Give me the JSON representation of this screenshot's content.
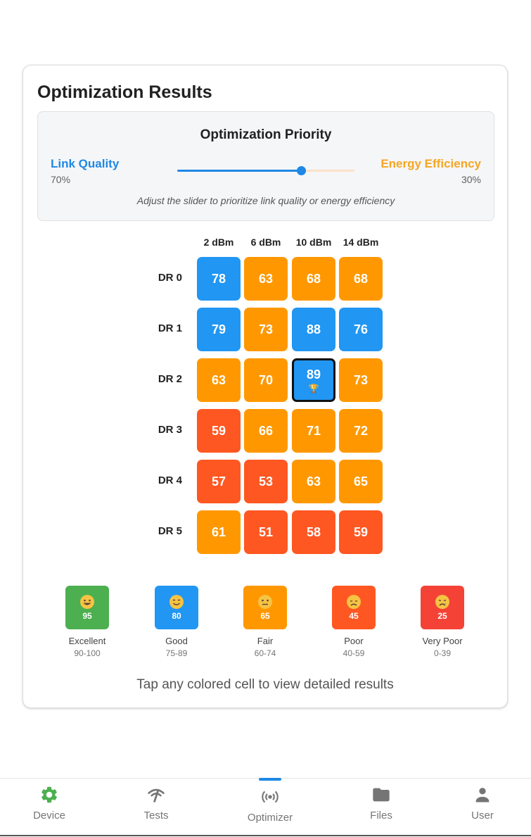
{
  "card": {
    "title": "Optimization Results"
  },
  "priority": {
    "title": "Optimization Priority",
    "link_quality_label": "Link Quality",
    "link_quality_value": "70%",
    "energy_label": "Energy Efficiency",
    "energy_value": "30%",
    "slider_fraction": 0.7,
    "hint": "Adjust the slider to prioritize link quality or energy efficiency"
  },
  "grid": {
    "columns": [
      "2 dBm",
      "6 dBm",
      "10 dBm",
      "14 dBm"
    ],
    "rows": [
      {
        "label": "DR 0",
        "values": [
          "78",
          "63",
          "68",
          "68"
        ]
      },
      {
        "label": "DR 1",
        "values": [
          "79",
          "73",
          "88",
          "76"
        ]
      },
      {
        "label": "DR 2",
        "values": [
          "63",
          "70",
          "89",
          "73"
        ]
      },
      {
        "label": "DR 3",
        "values": [
          "59",
          "66",
          "71",
          "72"
        ]
      },
      {
        "label": "DR 4",
        "values": [
          "57",
          "53",
          "63",
          "65"
        ]
      },
      {
        "label": "DR 5",
        "values": [
          "61",
          "51",
          "58",
          "59"
        ]
      }
    ],
    "best": {
      "row": 2,
      "col": 2,
      "icon": "trophy-icon",
      "glyph": "🏆"
    }
  },
  "legend": [
    {
      "score": "95",
      "name": "Excellent",
      "range": "90-100",
      "color": "#4caf50",
      "icon": "grinning-face-icon"
    },
    {
      "score": "80",
      "name": "Good",
      "range": "75-89",
      "color": "#2196f3",
      "icon": "smiling-face-icon"
    },
    {
      "score": "65",
      "name": "Fair",
      "range": "60-74",
      "color": "#ff9800",
      "icon": "neutral-face-icon"
    },
    {
      "score": "45",
      "name": "Poor",
      "range": "40-59",
      "color": "#ff5722",
      "icon": "disappointed-face-icon"
    },
    {
      "score": "25",
      "name": "Very Poor",
      "range": "0-39",
      "color": "#f44336",
      "icon": "crying-face-icon"
    }
  ],
  "hint_bottom": "Tap any colored cell to view detailed results",
  "nav": [
    {
      "label": "Device",
      "icon": "gear-icon",
      "active": false
    },
    {
      "label": "Tests",
      "icon": "signal-icon",
      "active": false
    },
    {
      "label": "Optimizer",
      "icon": "broadcast-icon",
      "active": true
    },
    {
      "label": "Files",
      "icon": "folder-icon",
      "active": false
    },
    {
      "label": "User",
      "icon": "person-icon",
      "active": false
    }
  ],
  "colors": {
    "excellent": "#4caf50",
    "good": "#2196f3",
    "fair": "#ff9800",
    "poor": "#ff5722",
    "very_poor": "#f44336",
    "accent_blue": "#1e88e5",
    "accent_orange": "#f5a623",
    "device_green": "#4caf50",
    "nav_gray": "#757575"
  }
}
